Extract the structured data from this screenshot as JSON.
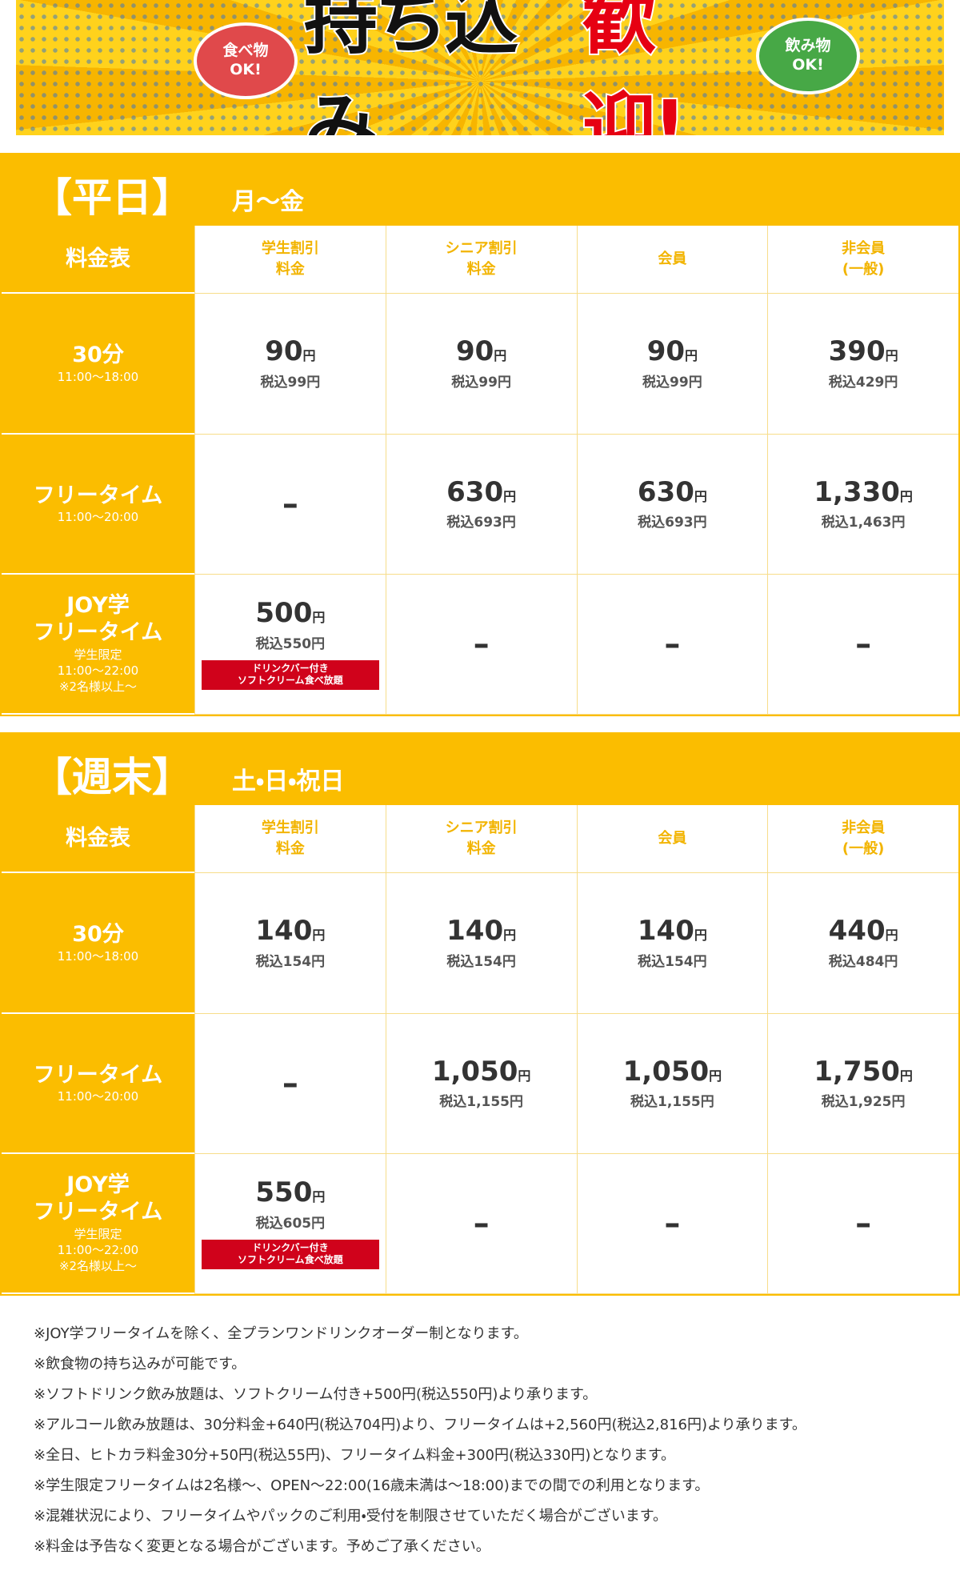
{
  "banner": {
    "food_bubble": [
      "食べ物",
      "OK!"
    ],
    "title_main": "持ち込み",
    "title_accent": "歓迎!",
    "drink_bubble": [
      "飲み物",
      "OK!"
    ]
  },
  "sections": [
    {
      "title": "【平日】",
      "days": "月〜金",
      "header_label": "料金表",
      "columns": [
        [
          "学生割引",
          "料金"
        ],
        [
          "シニア割引",
          "料金"
        ],
        [
          "会員"
        ],
        [
          "非会員",
          "(一般)"
        ]
      ],
      "rows": [
        {
          "label": [
            "30分"
          ],
          "sub": [
            "11:00〜18:00"
          ],
          "cells": [
            {
              "price": "90",
              "unit": "円",
              "tax": "税込99円"
            },
            {
              "price": "90",
              "unit": "円",
              "tax": "税込99円"
            },
            {
              "price": "90",
              "unit": "円",
              "tax": "税込99円"
            },
            {
              "price": "390",
              "unit": "円",
              "tax": "税込429円"
            }
          ]
        },
        {
          "label": [
            "フリータイム"
          ],
          "sub": [
            "11:00〜20:00"
          ],
          "cells": [
            {
              "dash": "–"
            },
            {
              "price": "630",
              "unit": "円",
              "tax": "税込693円"
            },
            {
              "price": "630",
              "unit": "円",
              "tax": "税込693円"
            },
            {
              "price": "1,330",
              "unit": "円",
              "tax": "税込1,463円"
            }
          ]
        },
        {
          "label": [
            "JOY学",
            "フリータイム"
          ],
          "sub": [
            "学生限定",
            "11:00〜22:00",
            "※2名様以上〜"
          ],
          "cells": [
            {
              "price": "500",
              "unit": "円",
              "tax": "税込550円",
              "badge": [
                "ドリンクバー付き",
                "ソフトクリーム食べ放題"
              ]
            },
            {
              "dash": "–"
            },
            {
              "dash": "–"
            },
            {
              "dash": "–"
            }
          ]
        }
      ]
    },
    {
      "title": "【週末】",
      "days": "土・日・祝日",
      "header_label": "料金表",
      "columns": [
        [
          "学生割引",
          "料金"
        ],
        [
          "シニア割引",
          "料金"
        ],
        [
          "会員"
        ],
        [
          "非会員",
          "(一般)"
        ]
      ],
      "rows": [
        {
          "label": [
            "30分"
          ],
          "sub": [
            "11:00〜18:00"
          ],
          "cells": [
            {
              "price": "140",
              "unit": "円",
              "tax": "税込154円"
            },
            {
              "price": "140",
              "unit": "円",
              "tax": "税込154円"
            },
            {
              "price": "140",
              "unit": "円",
              "tax": "税込154円"
            },
            {
              "price": "440",
              "unit": "円",
              "tax": "税込484円"
            }
          ]
        },
        {
          "label": [
            "フリータイム"
          ],
          "sub": [
            "11:00〜20:00"
          ],
          "cells": [
            {
              "dash": "–"
            },
            {
              "price": "1,050",
              "unit": "円",
              "tax": "税込1,155円"
            },
            {
              "price": "1,050",
              "unit": "円",
              "tax": "税込1,155円"
            },
            {
              "price": "1,750",
              "unit": "円",
              "tax": "税込1,925円"
            }
          ]
        },
        {
          "label": [
            "JOY学",
            "フリータイム"
          ],
          "sub": [
            "学生限定",
            "11:00〜22:00",
            "※2名様以上〜"
          ],
          "cells": [
            {
              "price": "550",
              "unit": "円",
              "tax": "税込605円",
              "badge": [
                "ドリンクバー付き",
                "ソフトクリーム食べ放題"
              ]
            },
            {
              "dash": "–"
            },
            {
              "dash": "–"
            },
            {
              "dash": "–"
            }
          ]
        }
      ]
    }
  ],
  "notes": [
    "※JOY学フリータイムを除く、全プランワンドリンクオーダー制となります。",
    "※飲食物の持ち込みが可能です。",
    "※ソフトドリンク飲み放題は、ソフトクリーム付き+500円(税込550円)より承ります。",
    "※アルコール飲み放題は、30分料金+640円(税込704円)より、フリータイムは+2,560円(税込2,816円)より承ります。",
    "※全日、ヒトカラ料金30分+50円(税込55円)、フリータイム料金+300円(税込330円)となります。",
    "※学生限定フリータイムは2名様〜、OPEN〜22:00(16歳未満は〜18:00)までの間での利用となります。",
    "※混雑状況により、フリータイムやパックのご利用・受付を制限させていただく場合がございます。",
    "※料金は予告なく変更となる場合がございます。予めご了承ください。"
  ]
}
